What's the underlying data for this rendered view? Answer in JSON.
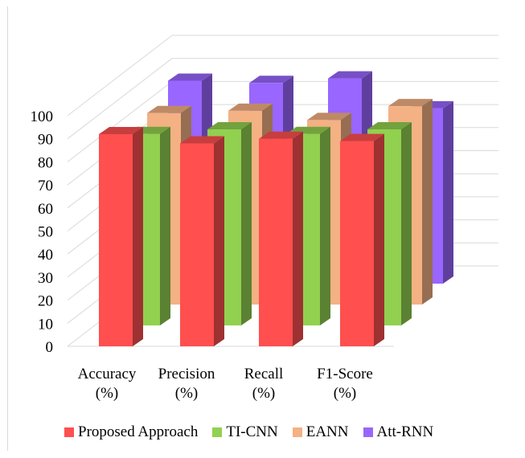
{
  "chart_data": {
    "type": "bar",
    "title": "",
    "xlabel": "",
    "ylabel": "",
    "ylim": [
      0,
      100
    ],
    "yticks": [
      0,
      10,
      20,
      30,
      40,
      50,
      60,
      70,
      80,
      90,
      100
    ],
    "categories": [
      "Accuracy (%)",
      "Precision (%)",
      "Recall (%)",
      "F1-Score (%)"
    ],
    "category_lines": [
      [
        "Accuracy",
        "(%)"
      ],
      [
        "Precision",
        "(%)"
      ],
      [
        "Recall",
        "(%)"
      ],
      [
        "F1-Score",
        "(%)"
      ]
    ],
    "series": [
      {
        "name": "Proposed Approach",
        "values": [
          92,
          88,
          90,
          89
        ]
      },
      {
        "name": "TI-CNN",
        "values": [
          83,
          85,
          83,
          85
        ]
      },
      {
        "name": "EANN",
        "values": [
          83,
          84,
          80,
          86
        ]
      },
      {
        "name": "Att-RNN",
        "values": [
          88,
          87,
          89,
          76
        ]
      }
    ],
    "colors": {
      "Proposed Approach": "#ff4f4f",
      "TI-CNN": "#92d050",
      "EANN": "#f4b183",
      "Att-RNN": "#9966ff"
    },
    "grid": true,
    "legend_position": "bottom"
  }
}
